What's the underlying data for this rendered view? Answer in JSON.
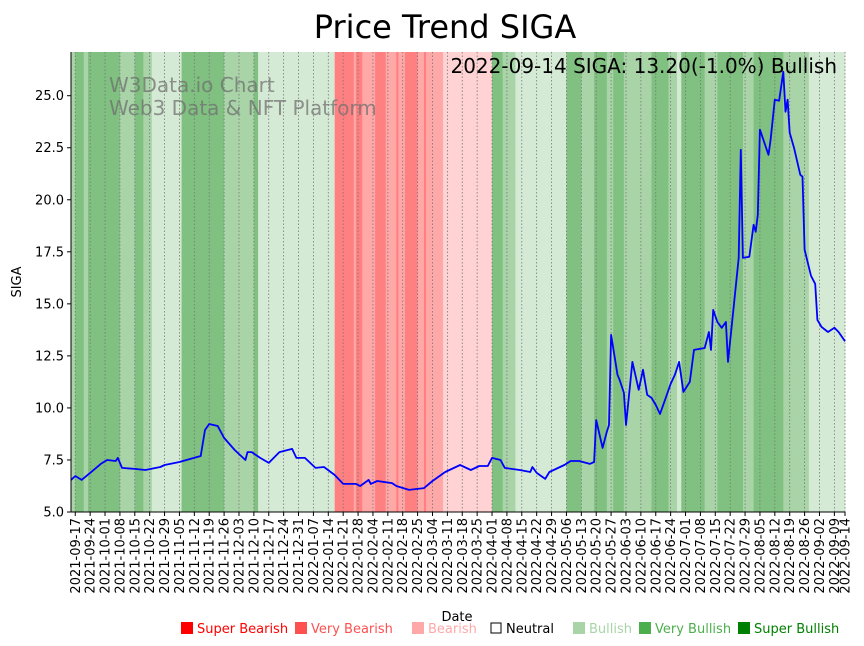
{
  "chart_data": {
    "type": "line",
    "title": "Price Trend SIGA",
    "xlabel": "Date",
    "ylabel": "SIGA",
    "start_date": "2021-09-14",
    "x_unit": "days since start_date",
    "xlim": [
      1,
      365
    ],
    "ylim": [
      5.0,
      27.1
    ],
    "grid": "vertical dotted at x ticks",
    "annotation": "2022-09-14 SIGA: 13.20(-1.0%) Bullish",
    "watermark": [
      "W3Data.io Chart",
      "Web3 Data & NFT Platform"
    ],
    "yticks": [
      "5.0",
      "7.5",
      "10.0",
      "12.5",
      "15.0",
      "17.5",
      "20.0",
      "22.5",
      "25.0"
    ],
    "xticks": [
      {
        "d": 3,
        "label": "2021-09-17"
      },
      {
        "d": 10,
        "label": "2021-09-24"
      },
      {
        "d": 17,
        "label": "2021-10-01"
      },
      {
        "d": 24,
        "label": "2021-10-08"
      },
      {
        "d": 31,
        "label": "2021-10-15"
      },
      {
        "d": 38,
        "label": "2021-10-22"
      },
      {
        "d": 45,
        "label": "2021-10-29"
      },
      {
        "d": 52,
        "label": "2021-11-05"
      },
      {
        "d": 59,
        "label": "2021-11-12"
      },
      {
        "d": 66,
        "label": "2021-11-19"
      },
      {
        "d": 73,
        "label": "2021-11-26"
      },
      {
        "d": 80,
        "label": "2021-12-03"
      },
      {
        "d": 87,
        "label": "2021-12-10"
      },
      {
        "d": 94,
        "label": "2021-12-17"
      },
      {
        "d": 101,
        "label": "2021-12-24"
      },
      {
        "d": 108,
        "label": "2021-12-31"
      },
      {
        "d": 115,
        "label": "2022-01-07"
      },
      {
        "d": 122,
        "label": "2022-01-14"
      },
      {
        "d": 129,
        "label": "2022-01-21"
      },
      {
        "d": 136,
        "label": "2022-01-28"
      },
      {
        "d": 143,
        "label": "2022-02-04"
      },
      {
        "d": 150,
        "label": "2022-02-11"
      },
      {
        "d": 157,
        "label": "2022-02-18"
      },
      {
        "d": 164,
        "label": "2022-02-25"
      },
      {
        "d": 171,
        "label": "2022-03-04"
      },
      {
        "d": 178,
        "label": "2022-03-11"
      },
      {
        "d": 185,
        "label": "2022-03-18"
      },
      {
        "d": 192,
        "label": "2022-03-25"
      },
      {
        "d": 199,
        "label": "2022-04-01"
      },
      {
        "d": 206,
        "label": "2022-04-08"
      },
      {
        "d": 213,
        "label": "2022-04-15"
      },
      {
        "d": 220,
        "label": "2022-04-22"
      },
      {
        "d": 227,
        "label": "2022-04-29"
      },
      {
        "d": 234,
        "label": "2022-05-06"
      },
      {
        "d": 241,
        "label": "2022-05-13"
      },
      {
        "d": 248,
        "label": "2022-05-20"
      },
      {
        "d": 255,
        "label": "2022-05-27"
      },
      {
        "d": 262,
        "label": "2022-06-03"
      },
      {
        "d": 269,
        "label": "2022-06-10"
      },
      {
        "d": 276,
        "label": "2022-06-17"
      },
      {
        "d": 283,
        "label": "2022-06-24"
      },
      {
        "d": 290,
        "label": "2022-07-01"
      },
      {
        "d": 297,
        "label": "2022-07-08"
      },
      {
        "d": 304,
        "label": "2022-07-15"
      },
      {
        "d": 311,
        "label": "2022-07-22"
      },
      {
        "d": 318,
        "label": "2022-07-29"
      },
      {
        "d": 325,
        "label": "2022-08-05"
      },
      {
        "d": 332,
        "label": "2022-08-12"
      },
      {
        "d": 339,
        "label": "2022-08-19"
      },
      {
        "d": 346,
        "label": "2022-08-26"
      },
      {
        "d": 353,
        "label": "2022-09-02"
      },
      {
        "d": 360,
        "label": "2022-09-09"
      },
      {
        "d": 365,
        "label": "2022-09-14"
      }
    ],
    "series": [
      {
        "name": "SIGA",
        "color": "#0000ff",
        "points": [
          [
            1,
            6.54
          ],
          [
            3,
            6.73
          ],
          [
            6,
            6.54
          ],
          [
            10,
            6.88
          ],
          [
            15,
            7.31
          ],
          [
            18,
            7.5
          ],
          [
            22,
            7.45
          ],
          [
            23,
            7.6
          ],
          [
            25,
            7.12
          ],
          [
            31,
            7.07
          ],
          [
            36,
            7.02
          ],
          [
            43,
            7.16
          ],
          [
            45,
            7.26
          ],
          [
            50,
            7.36
          ],
          [
            52,
            7.4
          ],
          [
            62,
            7.69
          ],
          [
            64,
            8.94
          ],
          [
            66,
            9.23
          ],
          [
            70,
            9.13
          ],
          [
            73,
            8.56
          ],
          [
            78,
            7.98
          ],
          [
            83,
            7.5
          ],
          [
            84,
            7.88
          ],
          [
            86,
            7.88
          ],
          [
            90,
            7.6
          ],
          [
            94,
            7.36
          ],
          [
            99,
            7.88
          ],
          [
            105,
            8.03
          ],
          [
            107,
            7.6
          ],
          [
            111,
            7.6
          ],
          [
            116,
            7.12
          ],
          [
            120,
            7.16
          ],
          [
            125,
            6.78
          ],
          [
            129,
            6.35
          ],
          [
            135,
            6.35
          ],
          [
            137,
            6.25
          ],
          [
            141,
            6.54
          ],
          [
            142,
            6.35
          ],
          [
            145,
            6.49
          ],
          [
            152,
            6.39
          ],
          [
            154,
            6.25
          ],
          [
            160,
            6.06
          ],
          [
            167,
            6.15
          ],
          [
            171,
            6.49
          ],
          [
            177,
            6.92
          ],
          [
            184,
            7.26
          ],
          [
            189,
            7.02
          ],
          [
            193,
            7.21
          ],
          [
            197,
            7.21
          ],
          [
            199,
            7.6
          ],
          [
            203,
            7.5
          ],
          [
            205,
            7.12
          ],
          [
            212,
            7.02
          ],
          [
            217,
            6.92
          ],
          [
            218,
            7.16
          ],
          [
            220,
            6.88
          ],
          [
            224,
            6.59
          ],
          [
            226,
            6.92
          ],
          [
            233,
            7.26
          ],
          [
            236,
            7.45
          ],
          [
            240,
            7.45
          ],
          [
            245,
            7.31
          ],
          [
            247,
            7.4
          ],
          [
            248,
            9.42
          ],
          [
            251,
            8.08
          ],
          [
            253,
            8.85
          ],
          [
            254,
            9.18
          ],
          [
            255,
            13.51
          ],
          [
            258,
            11.59
          ],
          [
            259,
            11.35
          ],
          [
            261,
            10.72
          ],
          [
            262,
            9.18
          ],
          [
            265,
            12.21
          ],
          [
            268,
            10.87
          ],
          [
            270,
            11.83
          ],
          [
            272,
            10.63
          ],
          [
            274,
            10.48
          ],
          [
            276,
            10.14
          ],
          [
            278,
            9.71
          ],
          [
            280,
            10.29
          ],
          [
            283,
            11.15
          ],
          [
            285,
            11.59
          ],
          [
            287,
            12.21
          ],
          [
            289,
            10.77
          ],
          [
            292,
            11.25
          ],
          [
            294,
            12.79
          ],
          [
            299,
            12.88
          ],
          [
            301,
            13.65
          ],
          [
            302,
            12.79
          ],
          [
            303,
            14.71
          ],
          [
            305,
            14.13
          ],
          [
            307,
            13.85
          ],
          [
            309,
            14.13
          ],
          [
            310,
            12.21
          ],
          [
            313,
            15.19
          ],
          [
            315,
            17.21
          ],
          [
            316,
            22.4
          ],
          [
            317,
            17.21
          ],
          [
            320,
            17.26
          ],
          [
            322,
            18.8
          ],
          [
            323,
            18.46
          ],
          [
            324,
            19.28
          ],
          [
            325,
            23.37
          ],
          [
            329,
            22.16
          ],
          [
            330,
            22.88
          ],
          [
            332,
            24.81
          ],
          [
            334,
            24.76
          ],
          [
            336,
            26.15
          ],
          [
            337,
            24.23
          ],
          [
            338,
            24.81
          ],
          [
            339,
            23.22
          ],
          [
            341,
            22.5
          ],
          [
            344,
            21.2
          ],
          [
            345,
            21.11
          ],
          [
            346,
            17.6
          ],
          [
            349,
            16.35
          ],
          [
            351,
            15.96
          ],
          [
            352,
            14.23
          ],
          [
            354,
            13.89
          ],
          [
            357,
            13.65
          ],
          [
            360,
            13.85
          ],
          [
            362,
            13.65
          ],
          [
            365,
            13.2
          ]
        ]
      }
    ],
    "sentiment_bands": [
      [
        1,
        3,
        "very_bullish"
      ],
      [
        3,
        7,
        "super_bullish"
      ],
      [
        7,
        9,
        "very_bullish"
      ],
      [
        9,
        24,
        "super_bullish"
      ],
      [
        24,
        31,
        "very_bullish"
      ],
      [
        31,
        35,
        "super_bullish"
      ],
      [
        35,
        39,
        "very_bullish"
      ],
      [
        39,
        53,
        "bullish"
      ],
      [
        53,
        73,
        "super_bullish"
      ],
      [
        73,
        87,
        "very_bullish"
      ],
      [
        87,
        89,
        "super_bullish"
      ],
      [
        89,
        125,
        "bullish"
      ],
      [
        125,
        134,
        "super_bearish"
      ],
      [
        134,
        135,
        "very_bearish"
      ],
      [
        135,
        138,
        "super_bearish"
      ],
      [
        138,
        144,
        "very_bearish"
      ],
      [
        144,
        149,
        "super_bearish"
      ],
      [
        149,
        154,
        "very_bearish"
      ],
      [
        154,
        155,
        "super_bearish"
      ],
      [
        155,
        158,
        "very_bearish"
      ],
      [
        158,
        164,
        "super_bearish"
      ],
      [
        164,
        167,
        "very_bearish"
      ],
      [
        167,
        168,
        "super_bearish"
      ],
      [
        168,
        176,
        "very_bearish"
      ],
      [
        176,
        199,
        "bearish"
      ],
      [
        199,
        204,
        "super_bullish"
      ],
      [
        204,
        210,
        "very_bullish"
      ],
      [
        210,
        234,
        "bullish"
      ],
      [
        234,
        241,
        "super_bullish"
      ],
      [
        241,
        247,
        "very_bullish"
      ],
      [
        247,
        253,
        "super_bullish"
      ],
      [
        253,
        256,
        "very_bullish"
      ],
      [
        256,
        261,
        "super_bullish"
      ],
      [
        261,
        274,
        "very_bullish"
      ],
      [
        274,
        282,
        "super_bullish"
      ],
      [
        282,
        286,
        "very_bullish"
      ],
      [
        286,
        288,
        "bullish"
      ],
      [
        288,
        299,
        "super_bullish"
      ],
      [
        299,
        305,
        "very_bullish"
      ],
      [
        305,
        317,
        "super_bullish"
      ],
      [
        317,
        322,
        "very_bullish"
      ],
      [
        322,
        336,
        "super_bullish"
      ],
      [
        336,
        348,
        "very_bullish"
      ],
      [
        348,
        365,
        "bullish"
      ]
    ],
    "band_colors": {
      "super_bearish": "#ff8080",
      "very_bearish": "#ffa8a8",
      "bearish": "#ffd3d3",
      "bullish": "#d5ead5",
      "very_bullish": "#a8d4a8",
      "super_bullish": "#80c080"
    },
    "legend": {
      "placement": "bottom",
      "items": [
        {
          "label": "Super Bearish",
          "color": "#ff0000"
        },
        {
          "label": "Very Bearish",
          "color": "#ff5050"
        },
        {
          "label": "Bearish",
          "color": "#ffa8a8"
        },
        {
          "label": "Neutral",
          "color": "#000000",
          "hollow": true
        },
        {
          "label": "Bullish",
          "color": "#a8d4a8"
        },
        {
          "label": "Very Bullish",
          "color": "#4caf4c"
        },
        {
          "label": "Super Bullish",
          "color": "#008000"
        }
      ]
    }
  }
}
